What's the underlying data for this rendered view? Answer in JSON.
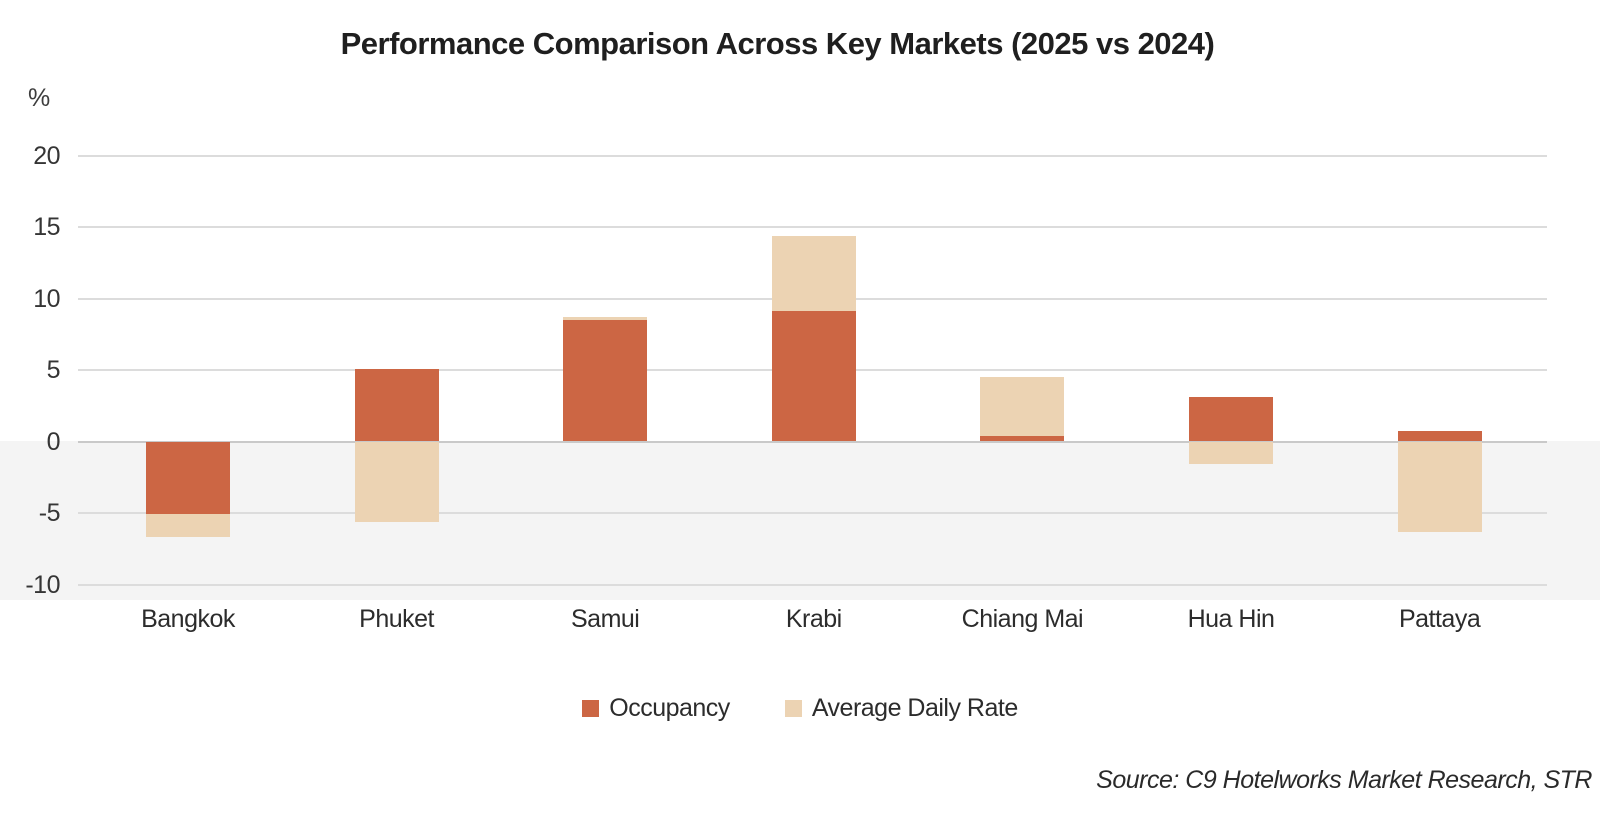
{
  "title": "Performance Comparison Across Key Markets (2025 vs 2024)",
  "axis": {
    "unit_label": "%",
    "ticks": [
      20,
      15,
      10,
      5,
      0,
      -5,
      -10
    ]
  },
  "chart_data": {
    "type": "bar",
    "stacked": true,
    "title": "Performance Comparison Across Key Markets (2025 vs 2024)",
    "xlabel": "",
    "ylabel": "%",
    "ylim": [
      -11,
      22
    ],
    "yticks": [
      20,
      15,
      10,
      5,
      0,
      -5,
      -10
    ],
    "grid": true,
    "legend_position": "bottom",
    "negative_region_shaded": true,
    "categories": [
      "Bangkok",
      "Phuket",
      "Samui",
      "Krabi",
      "Chiang Mai",
      "Hua Hin",
      "Pattaya"
    ],
    "series": [
      {
        "name": "Occupancy",
        "color": "#cc6644",
        "values": [
          -5.1,
          5.1,
          8.5,
          9.1,
          0.4,
          3.1,
          0.7
        ]
      },
      {
        "name": "Average Daily Rate",
        "color": "#ecd3b3",
        "values": [
          -1.6,
          -5.6,
          0.2,
          5.3,
          4.1,
          -1.6,
          -6.3
        ]
      }
    ]
  },
  "legend": {
    "items": [
      {
        "label": "Occupancy",
        "color": "#cc6644"
      },
      {
        "label": "Average Daily Rate",
        "color": "#ecd3b3"
      }
    ]
  },
  "source": "Source: C9 Hotelworks Market Research, STR",
  "colors": {
    "grid": "#dcdcdc",
    "zero_line": "#c9c9c9",
    "negative_band": "#f4f4f4",
    "text": "#2c2c2c"
  }
}
